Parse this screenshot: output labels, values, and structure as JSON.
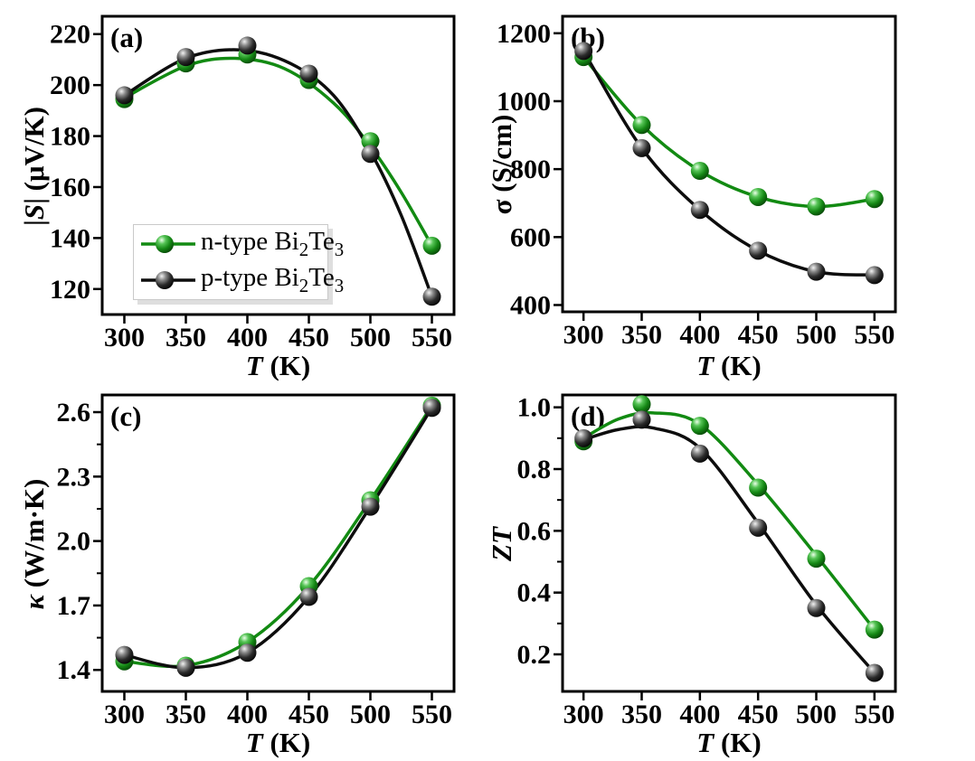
{
  "figure": {
    "background": "#ffffff",
    "series_colors": {
      "n": "#128a12",
      "p": "#0d0d0d"
    },
    "axis_color": "#000000"
  },
  "legend": {
    "position": "panel-a lower-left",
    "items": [
      {
        "series": "n",
        "pre": "n-type Bi",
        "sub1": "2",
        "mid": "Te",
        "sub2": "3",
        "full": "n-type Bi2Te3"
      },
      {
        "series": "p",
        "pre": "p-type Bi",
        "sub1": "2",
        "mid": "Te",
        "sub2": "3",
        "full": "p-type Bi2Te3"
      }
    ]
  },
  "chart_data": [
    {
      "id": "a",
      "type": "line",
      "panel_label": "(a)",
      "xlabel": "T (K)",
      "ylabel": "|S| (uV/K)",
      "xlabel_parts": [
        {
          "t": "T",
          "i": true
        },
        {
          "t": " (K)"
        }
      ],
      "ylabel_parts": [
        {
          "t": "|"
        },
        {
          "t": "S",
          "i": true
        },
        {
          "t": "| (μV/K)"
        }
      ],
      "x": [
        300,
        350,
        400,
        450,
        500,
        550
      ],
      "xlim": [
        282,
        568
      ],
      "ylim": [
        110,
        227
      ],
      "xticks": {
        "values": [
          300,
          350,
          400,
          450,
          500,
          550
        ],
        "labels": [
          "300",
          "350",
          "400",
          "450",
          "500",
          "550"
        ]
      },
      "yticks": {
        "values": [
          120,
          140,
          160,
          180,
          200,
          220
        ],
        "labels": [
          "120",
          "140",
          "160",
          "180",
          "200",
          "220"
        ]
      },
      "yminor": [],
      "grid": false,
      "series": [
        {
          "key": "n",
          "name": "n-type Bi2Te3",
          "values": [
            194.5,
            208.5,
            212,
            202,
            178,
            137
          ],
          "fit": [
            [
              300,
              195
            ],
            [
              350,
              207.5
            ],
            [
              390,
              210.5
            ],
            [
              430,
              206.5
            ],
            [
              470,
              193
            ],
            [
              500,
              176
            ],
            [
              525,
              158
            ],
            [
              550,
              137
            ]
          ]
        },
        {
          "key": "p",
          "name": "p-type Bi2Te3",
          "values": [
            196,
            211,
            215.5,
            204.5,
            173,
            117
          ],
          "fit": [
            [
              300,
              196
            ],
            [
              350,
              210.5
            ],
            [
              395,
              213.8
            ],
            [
              435,
              208.5
            ],
            [
              470,
              196
            ],
            [
              500,
              174
            ],
            [
              525,
              149
            ],
            [
              550,
              117
            ]
          ]
        }
      ]
    },
    {
      "id": "b",
      "type": "line",
      "panel_label": "(b)",
      "xlabel": "T (K)",
      "ylabel": "σ (S/cm)",
      "xlabel_parts": [
        {
          "t": "T",
          "i": true
        },
        {
          "t": " (K)"
        }
      ],
      "ylabel_parts": [
        {
          "t": "σ (S/cm)"
        }
      ],
      "x": [
        300,
        350,
        400,
        450,
        500,
        550
      ],
      "xlim": [
        282,
        568
      ],
      "ylim": [
        380,
        1250
      ],
      "xticks": {
        "values": [
          300,
          350,
          400,
          450,
          500,
          550
        ],
        "labels": [
          "300",
          "350",
          "400",
          "450",
          "500",
          "550"
        ]
      },
      "yticks": {
        "values": [
          400,
          600,
          800,
          1000,
          1200
        ],
        "labels": [
          "400",
          "600",
          "800",
          "1000",
          "1200"
        ]
      },
      "yminor": [],
      "grid": false,
      "series": [
        {
          "key": "n",
          "name": "n-type Bi2Te3",
          "values": [
            1130,
            930,
            795,
            718,
            690,
            712
          ]
        },
        {
          "key": "p",
          "name": "p-type Bi2Te3",
          "values": [
            1148,
            862,
            680,
            560,
            498,
            488
          ]
        }
      ]
    },
    {
      "id": "c",
      "type": "line",
      "panel_label": "(c)",
      "xlabel": "T (K)",
      "ylabel": "κ (W/m·K)",
      "xlabel_parts": [
        {
          "t": "T",
          "i": true
        },
        {
          "t": " (K)"
        }
      ],
      "ylabel_parts": [
        {
          "t": "κ",
          "i": true
        },
        {
          "t": " (W/m·K)"
        }
      ],
      "x": [
        300,
        350,
        400,
        450,
        500,
        550
      ],
      "xlim": [
        282,
        568
      ],
      "ylim": [
        1.3,
        2.68
      ],
      "xticks": {
        "values": [
          300,
          350,
          400,
          450,
          500,
          550
        ],
        "labels": [
          "300",
          "350",
          "400",
          "450",
          "500",
          "550"
        ]
      },
      "yticks": {
        "values": [
          1.4,
          1.7,
          2.0,
          2.3,
          2.6
        ],
        "labels": [
          "1.4",
          "1.7",
          "2.0",
          "2.3",
          "2.6"
        ]
      },
      "yminor": [
        1.55,
        1.85,
        2.15,
        2.45
      ],
      "grid": false,
      "series": [
        {
          "key": "n",
          "name": "n-type Bi2Te3",
          "values": [
            1.44,
            1.42,
            1.53,
            1.79,
            2.19,
            2.63
          ]
        },
        {
          "key": "p",
          "name": "p-type Bi2Te3",
          "values": [
            1.47,
            1.41,
            1.48,
            1.74,
            2.16,
            2.62
          ]
        }
      ]
    },
    {
      "id": "d",
      "type": "line",
      "panel_label": "(d)",
      "xlabel": "T (K)",
      "ylabel": "ZT",
      "xlabel_parts": [
        {
          "t": "T",
          "i": true
        },
        {
          "t": " (K)"
        }
      ],
      "ylabel_parts": [
        {
          "t": "ZT",
          "i": true
        }
      ],
      "x": [
        300,
        350,
        400,
        450,
        500,
        550
      ],
      "xlim": [
        282,
        568
      ],
      "ylim": [
        0.08,
        1.04
      ],
      "xticks": {
        "values": [
          300,
          350,
          400,
          450,
          500,
          550
        ],
        "labels": [
          "300",
          "350",
          "400",
          "450",
          "500",
          "550"
        ]
      },
      "yticks": {
        "values": [
          0.2,
          0.4,
          0.6,
          0.8,
          1.0
        ],
        "labels": [
          "0.2",
          "0.4",
          "0.6",
          "0.8",
          "1.0"
        ]
      },
      "yminor": [
        0.3,
        0.5,
        0.7,
        0.9
      ],
      "grid": false,
      "series": [
        {
          "key": "n",
          "name": "n-type Bi2Te3",
          "values": [
            0.89,
            1.01,
            0.94,
            0.74,
            0.51,
            0.28
          ],
          "fit": [
            [
              300,
              0.9
            ],
            [
              330,
              0.962
            ],
            [
              360,
              0.982
            ],
            [
              400,
              0.945
            ],
            [
              450,
              0.75
            ],
            [
              500,
              0.52
            ],
            [
              550,
              0.28
            ]
          ]
        },
        {
          "key": "p",
          "name": "p-type Bi2Te3",
          "values": [
            0.9,
            0.96,
            0.85,
            0.61,
            0.35,
            0.14
          ],
          "fit": [
            [
              300,
              0.895
            ],
            [
              330,
              0.928
            ],
            [
              360,
              0.933
            ],
            [
              400,
              0.868
            ],
            [
              450,
              0.625
            ],
            [
              500,
              0.36
            ],
            [
              550,
              0.14
            ]
          ]
        }
      ]
    }
  ]
}
